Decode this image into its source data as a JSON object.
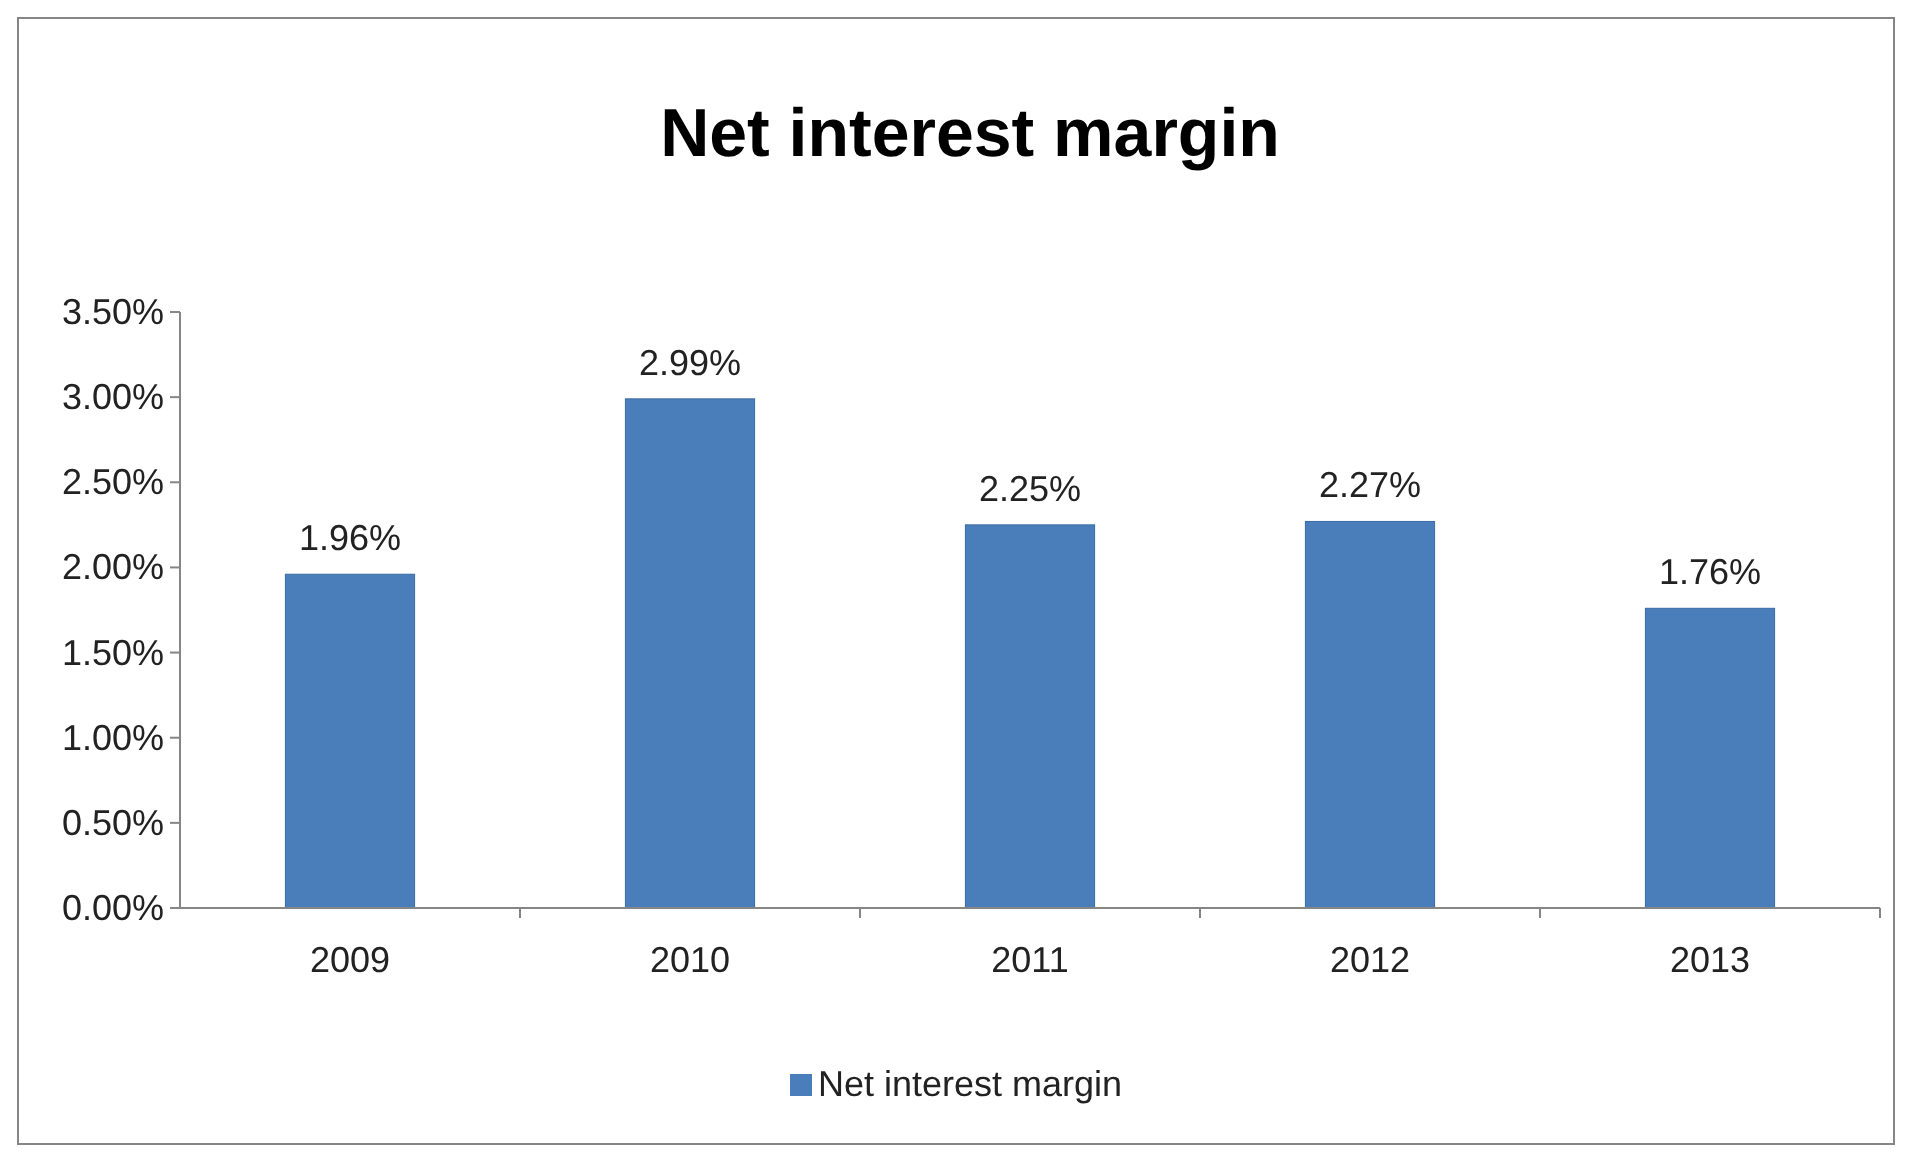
{
  "chart_data": {
    "type": "bar",
    "title": "Net interest margin",
    "categories": [
      "2009",
      "2010",
      "2011",
      "2012",
      "2013"
    ],
    "series": [
      {
        "name": "Net interest margin",
        "color": "#4a7ebb",
        "values": [
          1.96,
          2.99,
          2.25,
          2.27,
          1.76
        ],
        "value_labels": [
          "1.96%",
          "2.99%",
          "2.25%",
          "2.27%",
          "1.76%"
        ]
      }
    ],
    "ylim": [
      0,
      3.5
    ],
    "yticks": [
      {
        "value": 0,
        "label": "0.00%"
      },
      {
        "value": 0.5,
        "label": "0.50%"
      },
      {
        "value": 1,
        "label": "1.00%"
      },
      {
        "value": 1.5,
        "label": "1.50%"
      },
      {
        "value": 2,
        "label": "2.00%"
      },
      {
        "value": 2.5,
        "label": "2.50%"
      },
      {
        "value": 3,
        "label": "3.00%"
      },
      {
        "value": 3.5,
        "label": "3.50%"
      }
    ],
    "grid": false,
    "legend": "bottom"
  }
}
